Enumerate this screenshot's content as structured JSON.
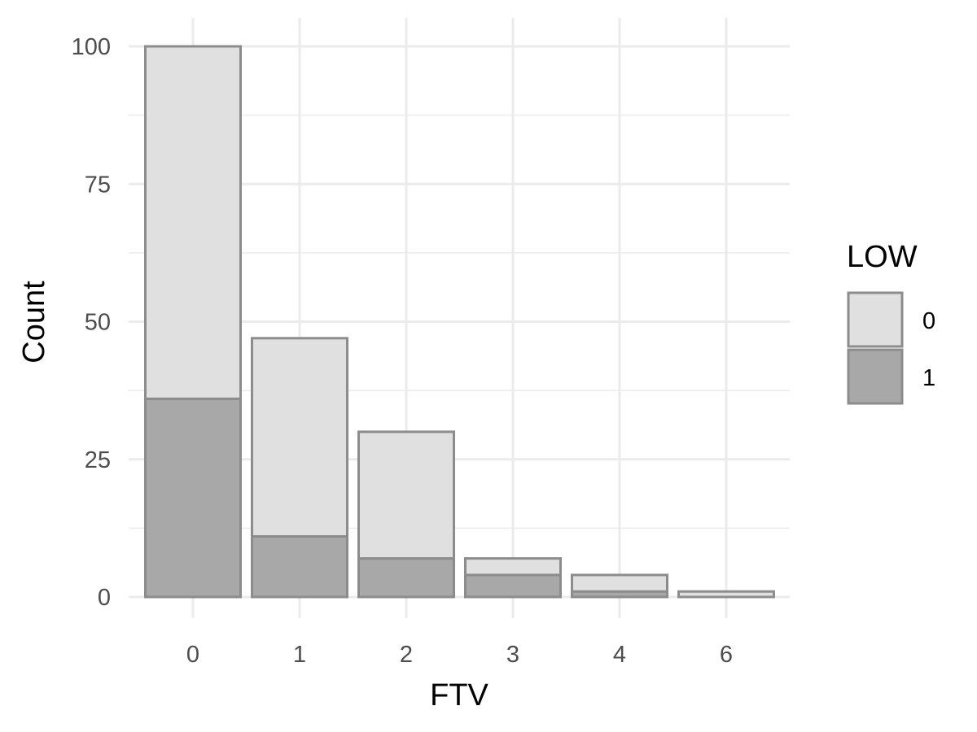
{
  "chart_data": {
    "type": "bar",
    "stacked": true,
    "title": "",
    "xlabel": "FTV",
    "ylabel": "Count",
    "categories": [
      "0",
      "1",
      "2",
      "3",
      "4",
      "6"
    ],
    "series": [
      {
        "name": "0",
        "values": [
          64,
          36,
          23,
          3,
          3,
          1
        ],
        "color": "#e0e0e0"
      },
      {
        "name": "1",
        "values": [
          36,
          11,
          7,
          4,
          1,
          0
        ],
        "color": "#a8a8a8"
      }
    ],
    "stroke_color": "#8c8c8c",
    "ylim": [
      0,
      100
    ],
    "yticks": [
      "0",
      "25",
      "50",
      "75",
      "100"
    ],
    "grid": true,
    "legend": {
      "title": "LOW",
      "position": "right"
    }
  }
}
